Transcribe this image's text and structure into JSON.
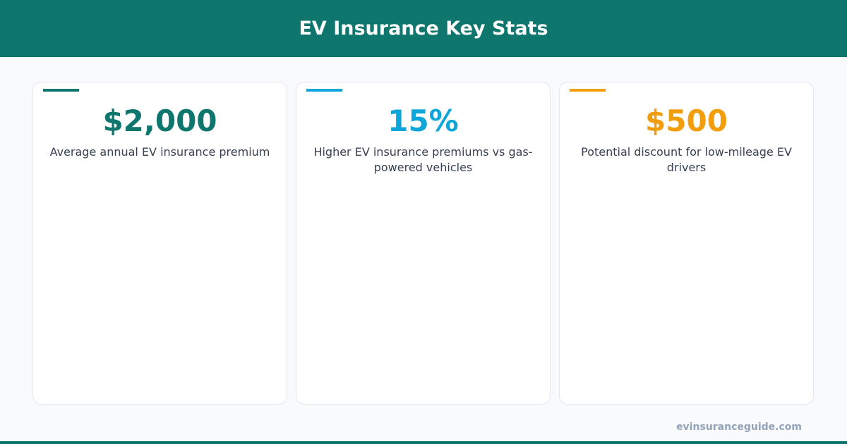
{
  "header": {
    "title": "EV Insurance Key Stats"
  },
  "cards": [
    {
      "value": "$2,000",
      "description": "Average annual EV insurance premium",
      "color": "#0f766e"
    },
    {
      "value": "15%",
      "description": "Higher EV insurance premiums vs gas-powered vehicles",
      "color": "#0ea5d8"
    },
    {
      "value": "$500",
      "description": "Potential discount for low-mileage EV drivers",
      "color": "#f29d0b"
    }
  ],
  "footer": {
    "source": "evinsuranceguide.com"
  }
}
